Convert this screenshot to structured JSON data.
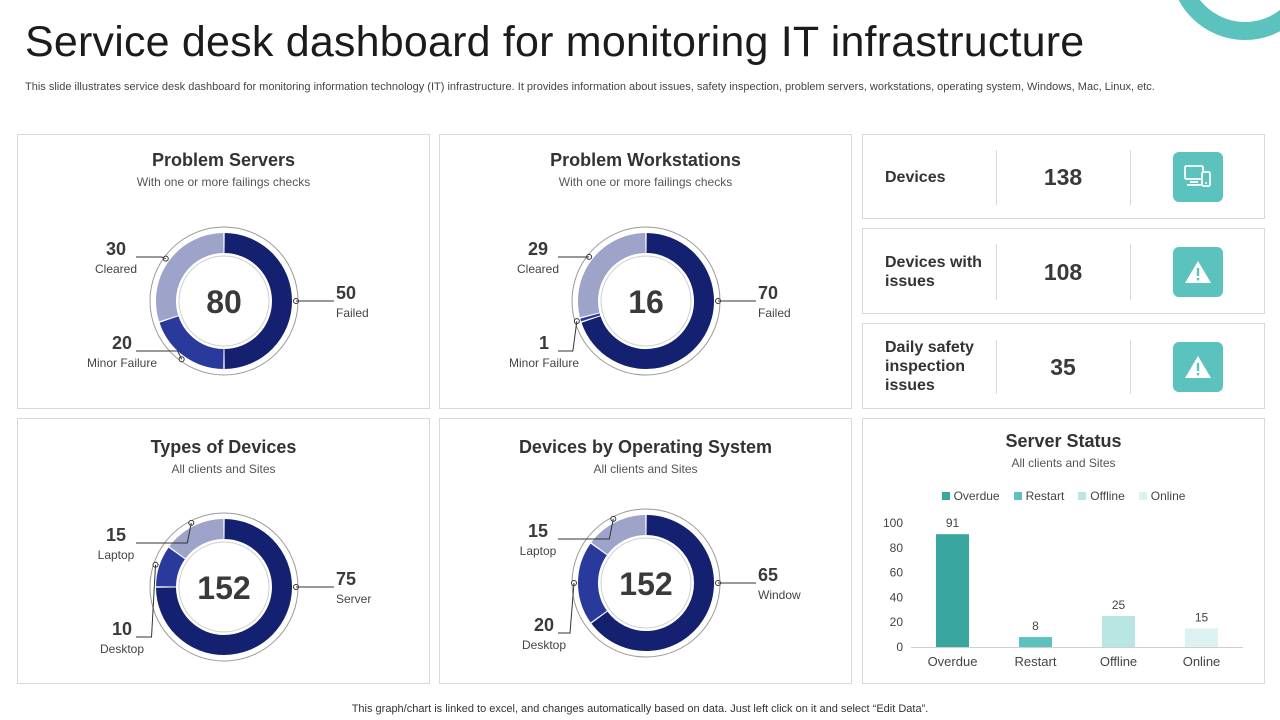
{
  "header": {
    "title": "Service desk dashboard for monitoring IT infrastructure",
    "subtitle": "This slide illustrates service desk dashboard for monitoring information technology (IT) infrastructure. It provides information about issues, safety inspection, problem servers, workstations, operating system, Windows, Mac, Linux, etc."
  },
  "colors": {
    "dark_navy": "#142170",
    "mid_blue": "#2a3a9c",
    "light_lavender": "#9ea3c9",
    "teal": "#5cc2bd",
    "teal_dark": "#3aa6a0"
  },
  "kpis": [
    {
      "label": "Devices",
      "value": "138",
      "icon": "devices-icon"
    },
    {
      "label": "Devices with issues",
      "value": "108",
      "icon": "warning-icon"
    },
    {
      "label": "Daily safety inspection issues",
      "value": "35",
      "icon": "warning-icon"
    }
  ],
  "chart_data": [
    {
      "type": "pie",
      "title": "Problem Servers",
      "subtitle": "With one or more failings checks",
      "center_value": "80",
      "slices": [
        {
          "label": "Failed",
          "value": 50,
          "color": "#142170"
        },
        {
          "label": "Minor Failure",
          "value": 20,
          "color": "#2a3a9c"
        },
        {
          "label": "Cleared",
          "value": 30,
          "color": "#9ea3c9"
        }
      ]
    },
    {
      "type": "pie",
      "title": "Problem Workstations",
      "subtitle": "With one or more failings checks",
      "center_value": "16",
      "slices": [
        {
          "label": "Failed",
          "value": 70,
          "color": "#142170"
        },
        {
          "label": "Minor Failure",
          "value": 1,
          "color": "#2a3a9c"
        },
        {
          "label": "Cleared",
          "value": 29,
          "color": "#9ea3c9"
        }
      ]
    },
    {
      "type": "pie",
      "title": "Types of Devices",
      "subtitle": "All clients and Sites",
      "center_value": "152",
      "slices": [
        {
          "label": "Server",
          "value": 75,
          "color": "#142170"
        },
        {
          "label": "Desktop",
          "value": 10,
          "color": "#2a3a9c"
        },
        {
          "label": "Laptop",
          "value": 15,
          "color": "#9ea3c9"
        }
      ]
    },
    {
      "type": "pie",
      "title": "Devices by Operating System",
      "subtitle": "All clients and Sites",
      "center_value": "152",
      "slices": [
        {
          "label": "Window",
          "value": 65,
          "color": "#142170"
        },
        {
          "label": "Desktop",
          "value": 20,
          "color": "#2a3a9c"
        },
        {
          "label": "Laptop",
          "value": 15,
          "color": "#9ea3c9"
        }
      ]
    },
    {
      "type": "bar",
      "title": "Server Status",
      "subtitle": "All clients and Sites",
      "categories": [
        "Overdue",
        "Restart",
        "Offline",
        "Online"
      ],
      "values": [
        91,
        8,
        25,
        15
      ],
      "colors": [
        "#3aa6a0",
        "#5cc2bd",
        "#b9e6e3",
        "#dbf2f0"
      ],
      "legend": [
        "Overdue",
        "Restart",
        "Offline",
        "Online"
      ],
      "ylim": [
        0,
        100
      ],
      "yticks": [
        0,
        20,
        40,
        60,
        80,
        100
      ]
    }
  ],
  "footer": "This graph/chart is linked to excel,  and changes automatically based on data. Just left click on it and select “Edit Data”."
}
